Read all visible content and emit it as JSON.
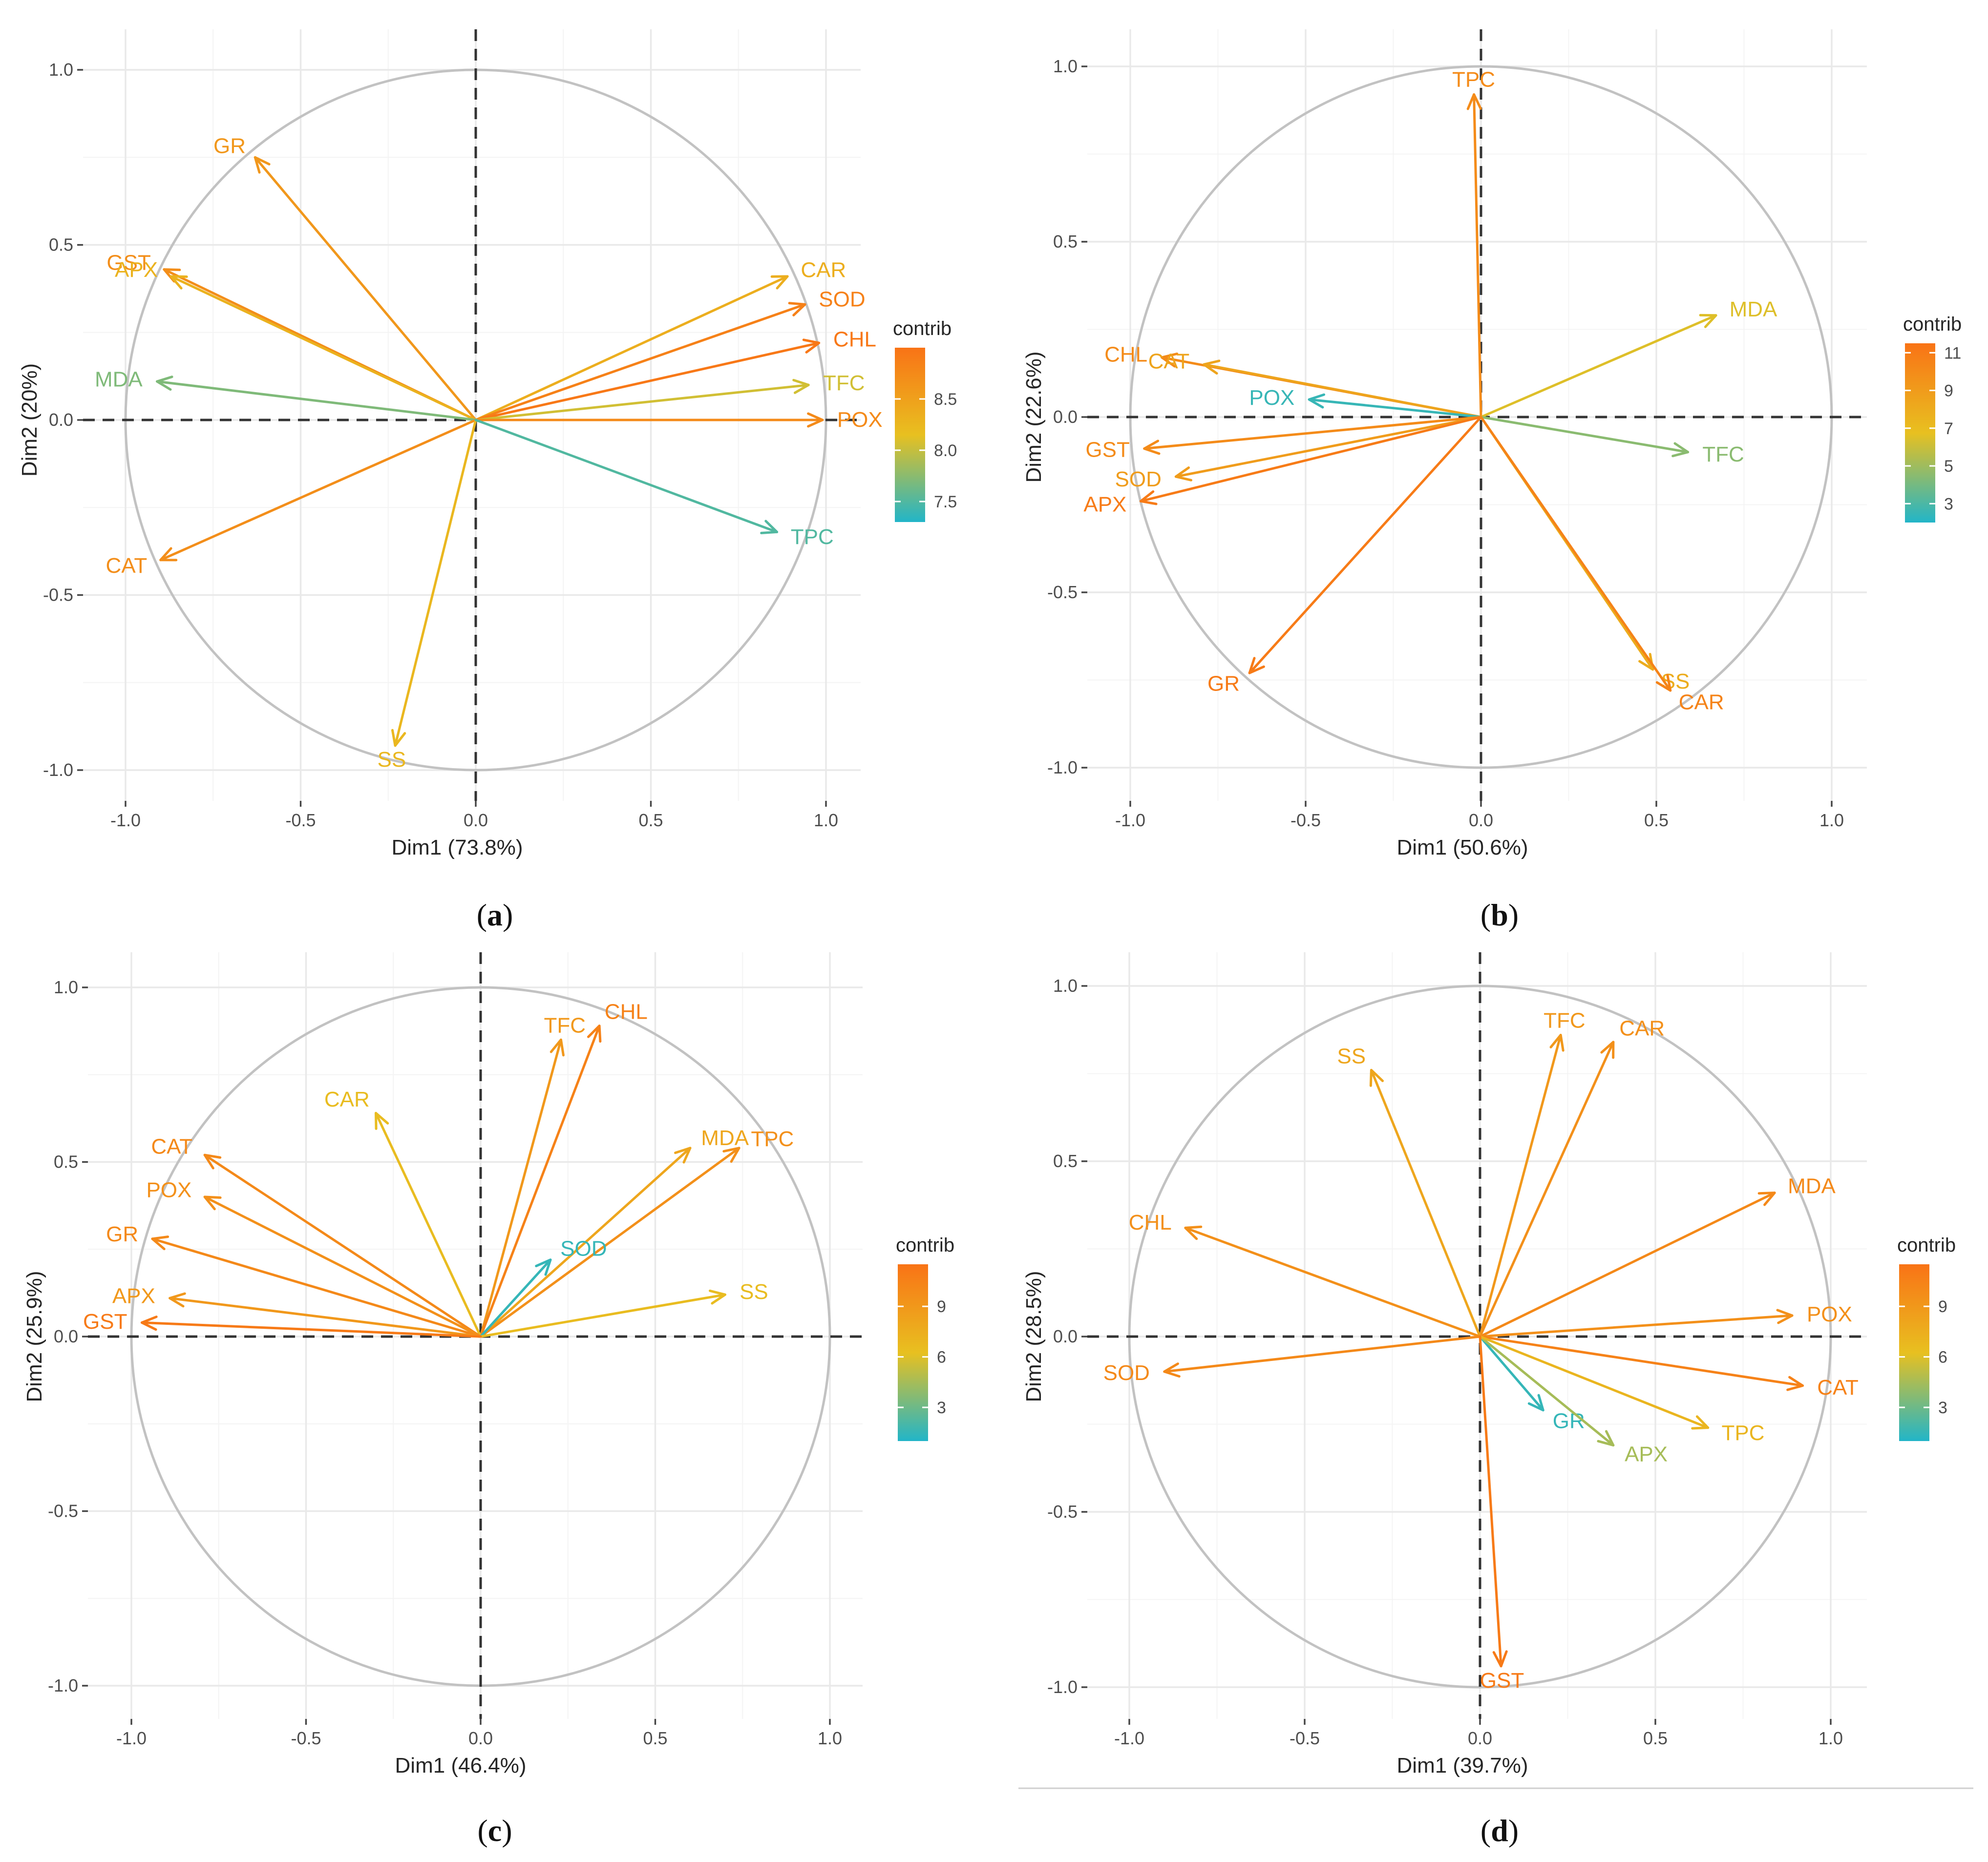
{
  "legend_gradient_colors": [
    "#22b5c8",
    "#e8c020",
    "#f97316"
  ],
  "chart_data": [
    {
      "id": "a",
      "type": "scatter",
      "subtype": "pca-correlation-circle",
      "caption_open": "(",
      "caption_letter": "a",
      "caption_close": ")",
      "xlabel": "Dim1 (73.8%)",
      "ylabel": "Dim2 (20%)",
      "xlim": [
        -1.0,
        1.0
      ],
      "ylim": [
        -1.0,
        1.0
      ],
      "xticks": [
        "-1.0",
        "-0.5",
        "0.0",
        "0.5",
        "1.0"
      ],
      "yticks": [
        "-1.0",
        "-0.5",
        "0.0",
        "0.5",
        "1.0"
      ],
      "legend_title": "contrib",
      "legend_range": [
        7.3,
        9.0
      ],
      "legend_ticks": [
        {
          "v": 7.5,
          "label": "7.5"
        },
        {
          "v": 8.0,
          "label": "8.0"
        },
        {
          "v": 8.5,
          "label": "8.5"
        }
      ],
      "vectors": [
        {
          "name": "GR",
          "x": -0.63,
          "y": 0.75,
          "contrib": 8.6
        },
        {
          "name": "GST",
          "x": -0.89,
          "y": 0.43,
          "contrib": 8.7
        },
        {
          "name": "APX",
          "x": -0.87,
          "y": 0.41,
          "contrib": 8.3
        },
        {
          "name": "MDA",
          "x": -0.91,
          "y": 0.11,
          "contrib": 7.7
        },
        {
          "name": "CAT",
          "x": -0.9,
          "y": -0.4,
          "contrib": 8.7
        },
        {
          "name": "SS",
          "x": -0.23,
          "y": -0.93,
          "contrib": 8.25
        },
        {
          "name": "CAR",
          "x": 0.89,
          "y": 0.41,
          "contrib": 8.35
        },
        {
          "name": "SOD",
          "x": 0.94,
          "y": 0.33,
          "contrib": 8.85
        },
        {
          "name": "CHL",
          "x": 0.98,
          "y": 0.22,
          "contrib": 8.95
        },
        {
          "name": "TFC",
          "x": 0.95,
          "y": 0.1,
          "contrib": 8.05
        },
        {
          "name": "POX",
          "x": 0.99,
          "y": 0.0,
          "contrib": 8.75
        },
        {
          "name": "TPC",
          "x": 0.86,
          "y": -0.32,
          "contrib": 7.5
        }
      ]
    },
    {
      "id": "b",
      "type": "scatter",
      "subtype": "pca-correlation-circle",
      "caption_open": "(",
      "caption_letter": "b",
      "caption_close": ")",
      "xlabel": "Dim1 (50.6%)",
      "ylabel": "Dim2 (22.6%)",
      "xlim": [
        -1.0,
        1.0
      ],
      "ylim": [
        -1.0,
        1.0
      ],
      "xticks": [
        "-1.0",
        "-0.5",
        "0.0",
        "0.5",
        "1.0"
      ],
      "yticks": [
        "-1.0",
        "-0.5",
        "0.0",
        "0.5",
        "1.0"
      ],
      "legend_title": "contrib",
      "legend_range": [
        2.0,
        11.5
      ],
      "legend_ticks": [
        {
          "v": 3,
          "label": "3"
        },
        {
          "v": 5,
          "label": "5"
        },
        {
          "v": 7,
          "label": "7"
        },
        {
          "v": 9,
          "label": "9"
        },
        {
          "v": 11,
          "label": "11"
        }
      ],
      "vectors": [
        {
          "name": "TPC",
          "x": -0.02,
          "y": 0.92,
          "contrib": 10.0
        },
        {
          "name": "MDA",
          "x": 0.67,
          "y": 0.29,
          "contrib": 6.5
        },
        {
          "name": "CHL",
          "x": -0.91,
          "y": 0.17,
          "contrib": 10.0
        },
        {
          "name": "CAT",
          "x": -0.79,
          "y": 0.15,
          "contrib": 8.5
        },
        {
          "name": "POX",
          "x": -0.49,
          "y": 0.05,
          "contrib": 2.5
        },
        {
          "name": "TFC",
          "x": 0.59,
          "y": -0.1,
          "contrib": 4.5
        },
        {
          "name": "GST",
          "x": -0.96,
          "y": -0.09,
          "contrib": 10.0
        },
        {
          "name": "SOD",
          "x": -0.87,
          "y": -0.17,
          "contrib": 9.0
        },
        {
          "name": "APX",
          "x": -0.97,
          "y": -0.24,
          "contrib": 11.0
        },
        {
          "name": "GR",
          "x": -0.66,
          "y": -0.73,
          "contrib": 11.0
        },
        {
          "name": "SS",
          "x": 0.49,
          "y": -0.72,
          "contrib": 8.0
        },
        {
          "name": "CAR",
          "x": 0.54,
          "y": -0.78,
          "contrib": 10.5
        }
      ]
    },
    {
      "id": "c",
      "type": "scatter",
      "subtype": "pca-correlation-circle",
      "caption_open": "(",
      "caption_letter": "c",
      "caption_close": ")",
      "xlabel": "Dim1 (46.4%)",
      "ylabel": "Dim2 (25.9%)",
      "xlim": [
        -1.0,
        1.0
      ],
      "ylim": [
        -1.0,
        1.0
      ],
      "xticks": [
        "-1.0",
        "-0.5",
        "0.0",
        "0.5",
        "1.0"
      ],
      "yticks": [
        "-1.0",
        "-0.5",
        "0.0",
        "0.5",
        "1.0"
      ],
      "legend_title": "contrib",
      "legend_range": [
        1.0,
        11.5
      ],
      "legend_ticks": [
        {
          "v": 3,
          "label": "3"
        },
        {
          "v": 6,
          "label": "6"
        },
        {
          "v": 9,
          "label": "9"
        }
      ],
      "vectors": [
        {
          "name": "TFC",
          "x": 0.23,
          "y": 0.85,
          "contrib": 9.0
        },
        {
          "name": "CHL",
          "x": 0.34,
          "y": 0.89,
          "contrib": 10.5
        },
        {
          "name": "CAR",
          "x": -0.3,
          "y": 0.64,
          "contrib": 6.5
        },
        {
          "name": "MDA",
          "x": 0.6,
          "y": 0.54,
          "contrib": 8.0
        },
        {
          "name": "TPC",
          "x": 0.74,
          "y": 0.54,
          "contrib": 9.5
        },
        {
          "name": "CAT",
          "x": -0.79,
          "y": 0.52,
          "contrib": 10.0
        },
        {
          "name": "POX",
          "x": -0.79,
          "y": 0.4,
          "contrib": 9.5
        },
        {
          "name": "GR",
          "x": -0.94,
          "y": 0.28,
          "contrib": 10.0
        },
        {
          "name": "SOD",
          "x": 0.2,
          "y": 0.22,
          "contrib": 1.5
        },
        {
          "name": "SS",
          "x": 0.7,
          "y": 0.12,
          "contrib": 6.5
        },
        {
          "name": "APX",
          "x": -0.89,
          "y": 0.11,
          "contrib": 9.0
        },
        {
          "name": "GST",
          "x": -0.97,
          "y": 0.04,
          "contrib": 11.0
        }
      ]
    },
    {
      "id": "d",
      "type": "scatter",
      "subtype": "pca-correlation-circle",
      "caption_open": "(",
      "caption_letter": "d",
      "caption_close": ")",
      "xlabel": "Dim1 (39.7%)",
      "ylabel": "Dim2 (28.5%)",
      "xlim": [
        -1.0,
        1.0
      ],
      "ylim": [
        -1.0,
        1.0
      ],
      "xticks": [
        "-1.0",
        "-0.5",
        "0.0",
        "0.5",
        "1.0"
      ],
      "yticks": [
        "-1.0",
        "-0.5",
        "0.0",
        "0.5",
        "1.0"
      ],
      "legend_title": "contrib",
      "legend_range": [
        1.0,
        11.5
      ],
      "legend_ticks": [
        {
          "v": 3,
          "label": "3"
        },
        {
          "v": 6,
          "label": "6"
        },
        {
          "v": 9,
          "label": "9"
        }
      ],
      "vectors": [
        {
          "name": "TFC",
          "x": 0.23,
          "y": 0.86,
          "contrib": 9.0
        },
        {
          "name": "CAR",
          "x": 0.38,
          "y": 0.84,
          "contrib": 9.5
        },
        {
          "name": "SS",
          "x": -0.31,
          "y": 0.76,
          "contrib": 8.0
        },
        {
          "name": "MDA",
          "x": 0.84,
          "y": 0.41,
          "contrib": 10.0
        },
        {
          "name": "CHL",
          "x": -0.84,
          "y": 0.31,
          "contrib": 9.5
        },
        {
          "name": "POX",
          "x": 0.89,
          "y": 0.06,
          "contrib": 9.5
        },
        {
          "name": "SOD",
          "x": -0.9,
          "y": -0.1,
          "contrib": 10.0
        },
        {
          "name": "CAT",
          "x": 0.92,
          "y": -0.14,
          "contrib": 10.5
        },
        {
          "name": "GR",
          "x": 0.18,
          "y": -0.21,
          "contrib": 1.5
        },
        {
          "name": "APX",
          "x": 0.38,
          "y": -0.31,
          "contrib": 4.5
        },
        {
          "name": "TPC",
          "x": 0.65,
          "y": -0.26,
          "contrib": 7.0
        },
        {
          "name": "GST",
          "x": 0.06,
          "y": -0.94,
          "contrib": 11.0
        }
      ]
    }
  ]
}
